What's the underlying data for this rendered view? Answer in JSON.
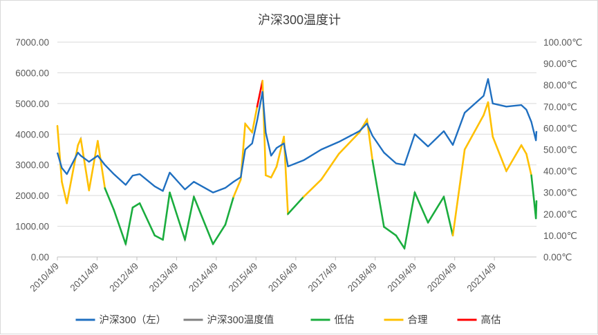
{
  "chart_data": {
    "type": "line",
    "title": "沪深300温度计",
    "xlabel": "",
    "ylabel": "",
    "x_ticks": [
      "2010/4/9",
      "2011/4/9",
      "2012/4/9",
      "2013/4/9",
      "2014/4/9",
      "2015/4/9",
      "2016/4/9",
      "2017/4/9",
      "2018/4/9",
      "2019/4/9",
      "2020/4/9",
      "2021/4/9"
    ],
    "x_range": [
      "2010-04-09",
      "2022-05-01"
    ],
    "y_left_ticks": [
      "0.00",
      "1000.00",
      "2000.00",
      "3000.00",
      "4000.00",
      "5000.00",
      "6000.00",
      "7000.00"
    ],
    "y_left_range": [
      0,
      7000
    ],
    "y_right_ticks": [
      "0.00℃",
      "10.00℃",
      "20.00℃",
      "30.00℃",
      "40.00℃",
      "50.00℃",
      "60.00℃",
      "70.00℃",
      "80.00℃",
      "90.00℃",
      "100.00℃"
    ],
    "y_right_range": [
      0,
      100
    ],
    "grid": true,
    "legend_position": "bottom",
    "colors": {
      "csi300": "#1f6fc0",
      "temperature": "#808080",
      "undervalued": "#1aad3e",
      "fair": "#ffc000",
      "overvalued": "#ff0000"
    },
    "legend": [
      {
        "key": "csi300",
        "label": "沪深300（左）"
      },
      {
        "key": "temperature",
        "label": "沪深300温度值"
      },
      {
        "key": "undervalued",
        "label": "低估"
      },
      {
        "key": "fair",
        "label": "合理"
      },
      {
        "key": "overvalued",
        "label": "高估"
      }
    ],
    "series": [
      {
        "key": "csi300",
        "axis": "left",
        "x": [
          "2010-04-09",
          "2010-05-20",
          "2010-07-05",
          "2010-10-15",
          "2010-11-10",
          "2011-01-25",
          "2011-04-15",
          "2011-06-20",
          "2011-09-10",
          "2011-12-28",
          "2012-03-01",
          "2012-05-05",
          "2012-09-20",
          "2012-12-04",
          "2013-02-05",
          "2013-06-25",
          "2013-09-15",
          "2014-03-10",
          "2014-07-01",
          "2014-09-15",
          "2014-11-20",
          "2014-12-31",
          "2015-03-05",
          "2015-04-20",
          "2015-06-08",
          "2015-07-08",
          "2015-08-26",
          "2015-10-15",
          "2015-12-22",
          "2016-01-28",
          "2016-06-20",
          "2016-11-29",
          "2017-05-10",
          "2017-11-15",
          "2018-01-24",
          "2018-03-15",
          "2018-06-29",
          "2018-10-18",
          "2019-01-03",
          "2019-04-08",
          "2019-08-08",
          "2019-12-31",
          "2020-03-23",
          "2020-07-10",
          "2020-12-31",
          "2021-02-10",
          "2021-03-25",
          "2021-07-28",
          "2021-12-13",
          "2022-01-28",
          "2022-03-15",
          "2022-04-26",
          "2022-05-01"
        ],
        "y": [
          3400,
          2900,
          2700,
          3400,
          3300,
          3100,
          3300,
          3000,
          2700,
          2350,
          2650,
          2700,
          2300,
          2150,
          2750,
          2200,
          2450,
          2100,
          2250,
          2450,
          2600,
          3500,
          3700,
          4450,
          5380,
          4050,
          3300,
          3550,
          3700,
          2950,
          3150,
          3500,
          3750,
          4100,
          4350,
          3950,
          3400,
          3050,
          3000,
          4000,
          3600,
          4100,
          3650,
          4700,
          5250,
          5800,
          5000,
          4900,
          4950,
          4800,
          4400,
          3800,
          4100
        ]
      },
      {
        "key": "temperature",
        "axis": "right",
        "x": [
          "2010-04-09",
          "2010-05-20",
          "2010-07-05",
          "2010-10-15",
          "2010-11-10",
          "2011-01-25",
          "2011-04-15",
          "2011-06-20",
          "2011-09-10",
          "2011-12-28",
          "2012-03-01",
          "2012-05-05",
          "2012-09-20",
          "2012-12-04",
          "2013-02-05",
          "2013-06-25",
          "2013-09-15",
          "2014-03-10",
          "2014-07-01",
          "2014-09-15",
          "2014-11-20",
          "2014-12-31",
          "2015-03-05",
          "2015-04-20",
          "2015-06-08",
          "2015-07-08",
          "2015-08-26",
          "2015-10-15",
          "2015-12-22",
          "2016-01-28",
          "2016-06-20",
          "2016-11-29",
          "2017-05-10",
          "2017-11-15",
          "2018-01-24",
          "2018-03-15",
          "2018-06-29",
          "2018-10-18",
          "2019-01-03",
          "2019-04-08",
          "2019-08-08",
          "2019-12-31",
          "2020-03-23",
          "2020-07-10",
          "2020-12-31",
          "2021-02-10",
          "2021-03-25",
          "2021-07-28",
          "2021-12-13",
          "2022-01-28",
          "2022-03-15",
          "2022-04-26",
          "2022-05-01"
        ],
        "y": [
          61,
          35,
          25,
          52,
          55,
          31,
          54,
          32,
          22,
          6,
          23,
          25,
          10,
          8,
          30,
          8,
          28,
          6,
          15,
          28,
          36,
          62,
          58,
          70,
          82,
          38,
          37,
          42,
          56,
          20,
          28,
          36,
          48,
          58,
          64,
          45,
          14,
          10,
          4,
          30,
          16,
          28,
          10,
          50,
          66,
          72,
          56,
          40,
          52,
          48,
          38,
          18,
          26
        ]
      }
    ],
    "band_thresholds": {
      "undervalued_below": 30,
      "overvalued_above": 70
    }
  }
}
